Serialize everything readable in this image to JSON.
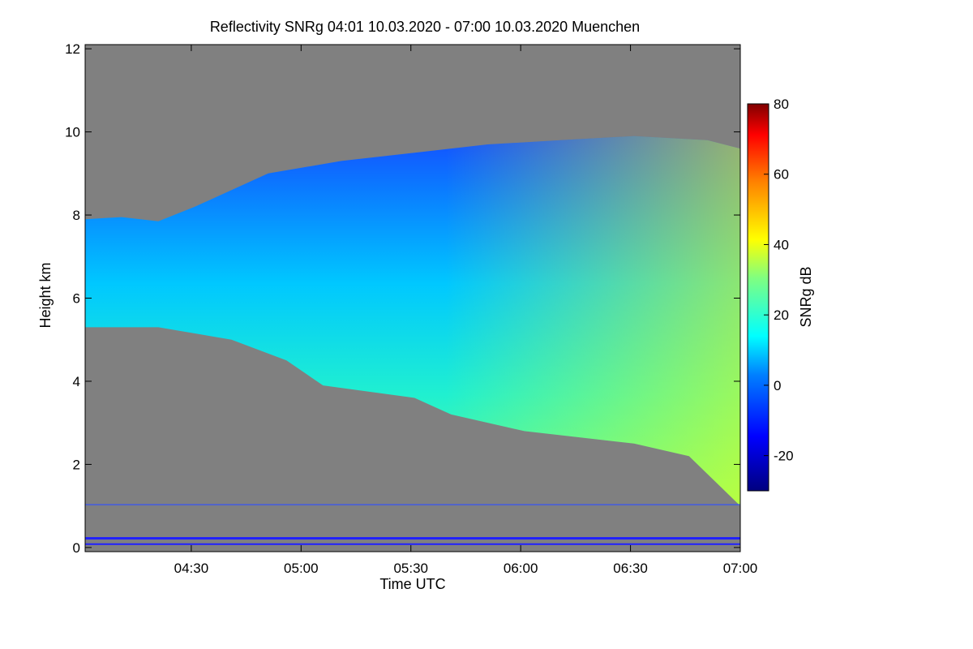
{
  "chart_data": {
    "type": "heatmap",
    "title": "Reflectivity SNRg   04:01 10.03.2020 - 07:00 10.03.2020 Muenchen",
    "xlabel": "Time UTC",
    "ylabel": "Height km",
    "xlim": [
      "04:01",
      "07:00"
    ],
    "ylim": [
      -0.1,
      12.1
    ],
    "x_ticks": [
      "04:30",
      "05:00",
      "05:30",
      "06:00",
      "06:30",
      "07:00"
    ],
    "y_ticks": [
      "0",
      "2",
      "4",
      "6",
      "8",
      "10",
      "12"
    ],
    "colorbar": {
      "label": "SNRg dB",
      "range": [
        -30,
        80
      ],
      "ticks": [
        "-20",
        "0",
        "20",
        "40",
        "60",
        "80"
      ]
    },
    "colors": {
      "background": "#808080",
      "low": "#0000ff",
      "high": "#ffff00"
    },
    "echo_top_km": [
      [
        0,
        7.9
      ],
      [
        10,
        7.95
      ],
      [
        20,
        7.85
      ],
      [
        30,
        8.2
      ],
      [
        50,
        9.0
      ],
      [
        70,
        9.3
      ],
      [
        90,
        9.5
      ],
      [
        110,
        9.7
      ],
      [
        130,
        9.8
      ],
      [
        150,
        9.9
      ],
      [
        170,
        9.8
      ],
      [
        179,
        9.6
      ]
    ],
    "echo_base_km": [
      [
        0,
        5.3
      ],
      [
        20,
        5.3
      ],
      [
        40,
        5.0
      ],
      [
        55,
        4.5
      ],
      [
        65,
        3.9
      ],
      [
        90,
        3.6
      ],
      [
        100,
        3.2
      ],
      [
        120,
        2.8
      ],
      [
        150,
        2.5
      ],
      [
        165,
        2.2
      ],
      [
        179,
        1.0
      ]
    ]
  }
}
